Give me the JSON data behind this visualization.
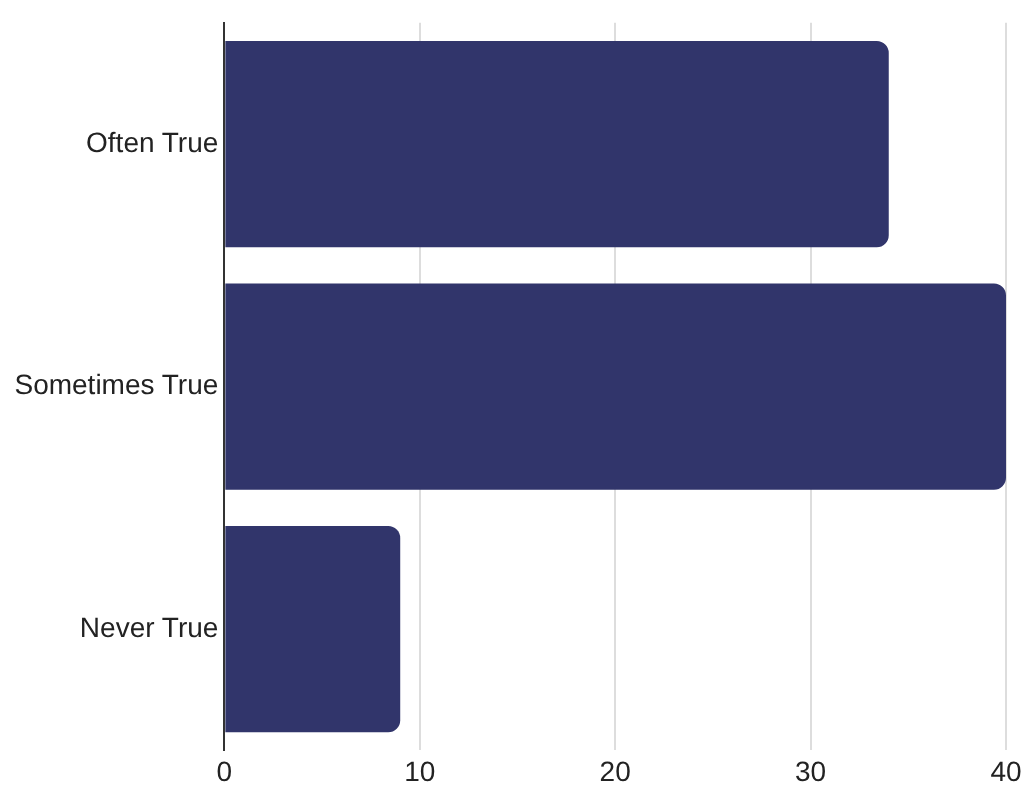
{
  "chart_data": {
    "type": "bar",
    "orientation": "horizontal",
    "categories": [
      "Often True",
      "Sometimes True",
      "Never True"
    ],
    "values": [
      34,
      40,
      9
    ],
    "color": "#31356b",
    "xlim": [
      0,
      40
    ],
    "xticks": [
      0,
      10,
      20,
      30,
      40
    ],
    "grid": "x",
    "legend": false
  }
}
